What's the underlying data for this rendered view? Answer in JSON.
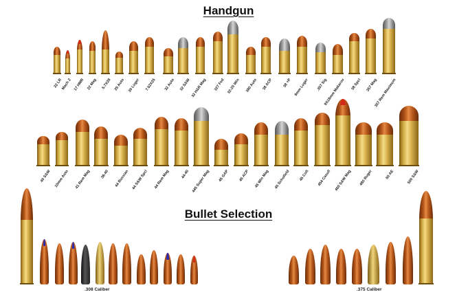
{
  "titles": {
    "handgun": "Handgun",
    "bullet_selection": "Bullet Selection"
  },
  "handgun_row1": [
    {
      "label": "22 LR",
      "bullet": "copper"
    },
    {
      "label": "Mach 2",
      "bullet": "red-tip"
    },
    {
      "label": "17 HMR",
      "bullet": "red-tip"
    },
    {
      "label": "22 Mag",
      "bullet": "copper"
    },
    {
      "label": "5.7X28",
      "bullet": "copper"
    },
    {
      "label": "25 Auto",
      "bullet": "copper"
    },
    {
      "label": "30 Luger",
      "bullet": "copper"
    },
    {
      "label": "7.62X25",
      "bullet": "copper"
    },
    {
      "label": "32 Auto",
      "bullet": "copper"
    },
    {
      "label": "32 S&W",
      "bullet": "lead"
    },
    {
      "label": "32 H&R Mag",
      "bullet": "copper"
    },
    {
      "label": "327 Fed",
      "bullet": "copper"
    },
    {
      "label": "32-20 Win",
      "bullet": "lead"
    },
    {
      "label": "380 Auto",
      "bullet": "copper"
    },
    {
      "label": "38 ACP",
      "bullet": "copper"
    },
    {
      "label": "38 +P",
      "bullet": "lead"
    },
    {
      "label": "9mm Luger",
      "bullet": "copper"
    },
    {
      "label": ".357 Sig",
      "bullet": "lead"
    },
    {
      "label": "9X18mm Makarov",
      "bullet": "copper"
    },
    {
      "label": "38 Spcl",
      "bullet": "copper"
    },
    {
      "label": "357 Mag",
      "bullet": "copper"
    },
    {
      "label": "357 Rem Maximum",
      "bullet": "lead"
    }
  ],
  "handgun_row2": [
    {
      "label": "40 S&W",
      "bullet": "copper"
    },
    {
      "label": "10mm Auto",
      "bullet": "copper"
    },
    {
      "label": "41 Rem Mag",
      "bullet": "copper"
    },
    {
      "label": "38-40",
      "bullet": "copper"
    },
    {
      "label": "44 Russian",
      "bullet": "copper"
    },
    {
      "label": "44 S&W Spcl",
      "bullet": "copper"
    },
    {
      "label": "44 Rem Mag",
      "bullet": "copper"
    },
    {
      "label": "44-40",
      "bullet": "copper"
    },
    {
      "label": "445 Super Mag",
      "bullet": "lead"
    },
    {
      "label": "45 GAP",
      "bullet": "copper"
    },
    {
      "label": "45 ACP",
      "bullet": "copper"
    },
    {
      "label": "45 Win Mag",
      "bullet": "copper"
    },
    {
      "label": "45 Schofield",
      "bullet": "lead"
    },
    {
      "label": "45 Colt",
      "bullet": "copper"
    },
    {
      "label": "454 Casull",
      "bullet": "copper"
    },
    {
      "label": "460 S&W Mag",
      "bullet": "red-tip"
    },
    {
      "label": "480 Ruger",
      "bullet": "copper"
    },
    {
      "label": "50 AE",
      "bullet": "copper"
    },
    {
      "label": "500 S&W",
      "bullet": "copper"
    }
  ],
  "calibers": {
    "left": ".308 Caliber",
    "right": ".375 Caliber"
  },
  "colors": {
    "brass": "#d9b24e",
    "copper": "#c4621c",
    "lead": "#8e8e8e",
    "red_tip": "#d42a1a",
    "blue_tip": "#2a2ab0",
    "black_bullet": "#2a2a2a"
  }
}
